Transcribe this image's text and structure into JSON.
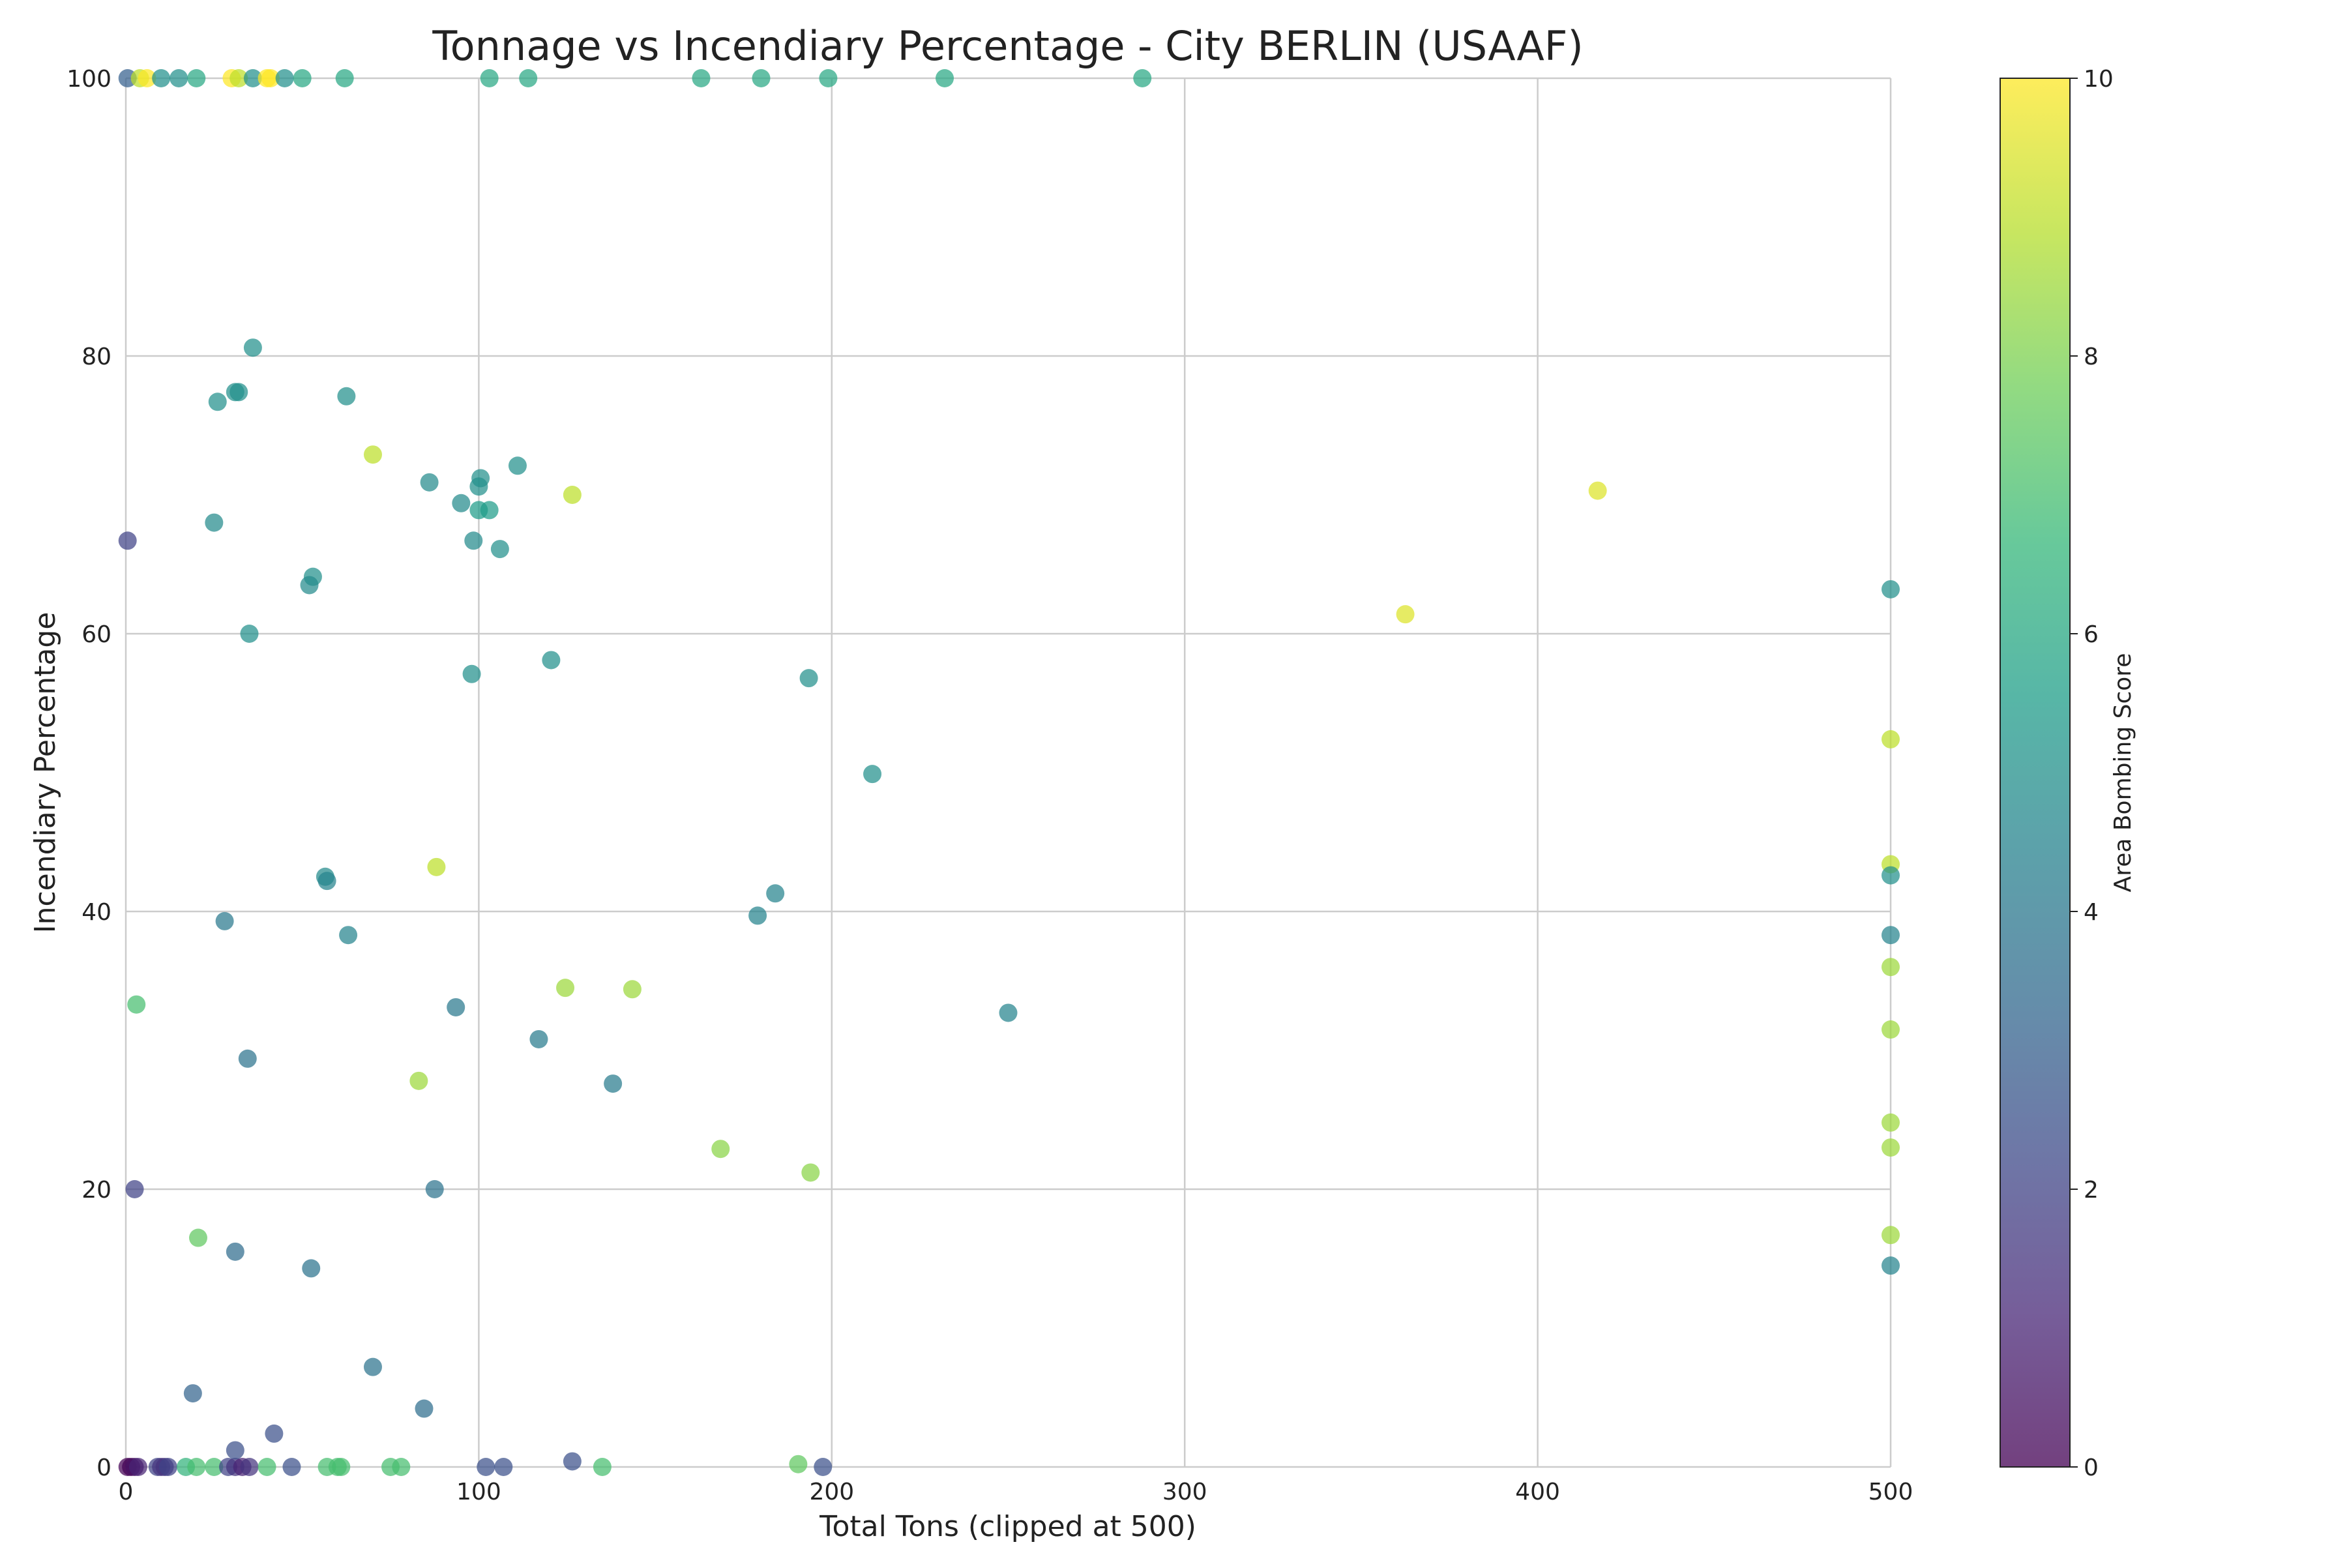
{
  "chart_data": {
    "type": "scatter",
    "title": "Tonnage vs Incendiary Percentage - City BERLIN (USAAF)",
    "xlabel": "Total Tons (clipped at 500)",
    "ylabel": "Incendiary Percentage",
    "xlim": [
      0,
      500
    ],
    "ylim": [
      0,
      100
    ],
    "xticks": [
      "0",
      "100",
      "200",
      "300",
      "400",
      "500"
    ],
    "yticks": [
      "0",
      "20",
      "40",
      "60",
      "80",
      "100"
    ],
    "grid": true,
    "colorbar": {
      "label": "Area Bombing Score",
      "range": [
        0,
        10
      ],
      "ticks": [
        "0",
        "2",
        "4",
        "6",
        "8",
        "10"
      ],
      "colormap": "viridis",
      "colors": [
        "#440154",
        "#482878",
        "#3e4989",
        "#31688e",
        "#26828e",
        "#1f9e89",
        "#35b779",
        "#6ece58",
        "#b5de2b",
        "#fde725"
      ]
    },
    "points": [
      [
        0.5,
        100,
        3
      ],
      [
        4,
        100,
        9
      ],
      [
        6,
        100,
        10
      ],
      [
        10,
        100,
        5
      ],
      [
        15,
        100,
        5
      ],
      [
        20,
        100,
        6
      ],
      [
        30,
        100,
        10
      ],
      [
        32,
        100,
        9
      ],
      [
        36,
        100,
        5
      ],
      [
        40,
        100,
        10
      ],
      [
        41,
        100,
        10
      ],
      [
        45,
        100,
        5
      ],
      [
        50,
        100,
        6
      ],
      [
        62,
        100,
        6
      ],
      [
        103,
        100,
        6
      ],
      [
        114,
        100,
        6
      ],
      [
        163,
        100,
        6
      ],
      [
        180,
        100,
        6
      ],
      [
        199,
        100,
        6
      ],
      [
        232,
        100,
        6
      ],
      [
        288,
        100,
        6
      ],
      [
        0.5,
        66.7,
        2
      ],
      [
        3,
        33.3,
        7
      ],
      [
        2.5,
        20,
        2
      ],
      [
        36,
        80.6,
        5
      ],
      [
        31,
        77.4,
        5
      ],
      [
        32,
        77.4,
        5
      ],
      [
        26,
        76.7,
        5
      ],
      [
        62.5,
        77.1,
        5
      ],
      [
        25,
        68,
        4.8
      ],
      [
        53,
        64.1,
        5
      ],
      [
        52,
        63.5,
        4.8
      ],
      [
        35,
        60,
        5
      ],
      [
        70,
        72.9,
        9
      ],
      [
        86,
        70.9,
        4.8
      ],
      [
        100.5,
        71.2,
        5
      ],
      [
        100,
        70.6,
        5
      ],
      [
        111,
        72.1,
        5
      ],
      [
        95,
        69.4,
        4.8
      ],
      [
        100,
        68.9,
        5.5
      ],
      [
        103,
        68.9,
        5.5
      ],
      [
        98.5,
        66.7,
        4.8
      ],
      [
        106,
        66.1,
        5
      ],
      [
        126.5,
        70,
        9
      ],
      [
        98,
        57.1,
        5
      ],
      [
        120.5,
        58.1,
        5
      ],
      [
        193.5,
        56.8,
        5
      ],
      [
        211.5,
        49.9,
        5
      ],
      [
        56.5,
        42.5,
        4.8
      ],
      [
        57,
        42.2,
        4.5
      ],
      [
        28,
        39.3,
        4
      ],
      [
        63,
        38.3,
        4.5
      ],
      [
        88,
        43.2,
        9
      ],
      [
        179,
        39.7,
        4.5
      ],
      [
        184,
        41.3,
        4.5
      ],
      [
        93.5,
        33.1,
        4
      ],
      [
        124.5,
        34.5,
        8.5
      ],
      [
        143.5,
        34.4,
        8.5
      ],
      [
        250,
        32.7,
        4.5
      ],
      [
        34.5,
        29.4,
        3.8
      ],
      [
        117,
        30.8,
        4.2
      ],
      [
        83,
        27.8,
        8.5
      ],
      [
        138,
        27.6,
        4.2
      ],
      [
        168.5,
        22.9,
        8.2
      ],
      [
        194,
        21.2,
        8.2
      ],
      [
        87.5,
        20,
        3.8
      ],
      [
        20.5,
        16.5,
        7.5
      ],
      [
        31,
        15.5,
        3.5
      ],
      [
        52.5,
        14.3,
        3.8
      ],
      [
        70,
        7.2,
        3.8
      ],
      [
        84.5,
        4.2,
        3.6
      ],
      [
        19,
        5.3,
        3.2
      ],
      [
        362.5,
        61.4,
        9.5
      ],
      [
        417,
        70.3,
        9.5
      ],
      [
        500,
        63.2,
        5
      ],
      [
        500,
        52.4,
        9
      ],
      [
        500,
        43.4,
        9
      ],
      [
        500,
        42.6,
        5
      ],
      [
        500,
        38.3,
        4.5
      ],
      [
        500,
        36,
        8.5
      ],
      [
        500,
        31.5,
        8.5
      ],
      [
        500,
        24.8,
        8.5
      ],
      [
        500,
        23,
        8.5
      ],
      [
        500,
        16.7,
        8.5
      ],
      [
        500,
        14.5,
        4.5
      ],
      [
        0.5,
        0,
        0
      ],
      [
        1.5,
        0,
        0
      ],
      [
        2.5,
        0,
        0.5
      ],
      [
        3.5,
        0,
        1
      ],
      [
        9,
        0,
        2
      ],
      [
        10,
        0,
        1.5
      ],
      [
        11,
        0,
        1.5
      ],
      [
        12,
        0,
        2
      ],
      [
        17,
        0,
        6.5
      ],
      [
        20,
        0,
        7
      ],
      [
        25,
        0,
        7
      ],
      [
        29,
        0,
        2
      ],
      [
        31,
        0,
        1.5
      ],
      [
        33,
        0,
        1
      ],
      [
        35,
        0,
        1.5
      ],
      [
        40,
        0,
        7
      ],
      [
        47,
        0,
        2.5
      ],
      [
        57,
        0,
        7
      ],
      [
        60,
        0,
        7
      ],
      [
        61,
        0,
        7
      ],
      [
        75,
        0,
        7
      ],
      [
        78,
        0,
        7
      ],
      [
        102,
        0,
        2.5
      ],
      [
        107,
        0,
        2.5
      ],
      [
        135,
        0,
        7
      ],
      [
        190.5,
        0.2,
        7.5
      ],
      [
        197.5,
        0,
        2.5
      ],
      [
        126.5,
        0.4,
        2.5
      ],
      [
        31,
        1.2,
        2.5
      ],
      [
        42,
        2.4,
        2.5
      ]
    ]
  }
}
